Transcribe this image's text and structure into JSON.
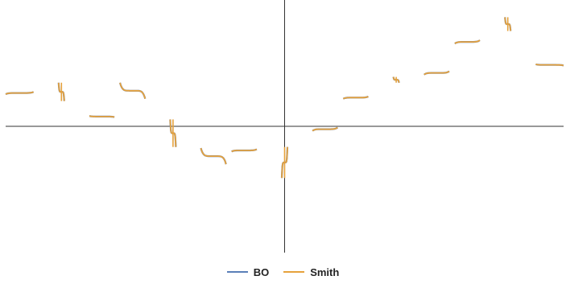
{
  "chart_data": {
    "type": "line",
    "title": "",
    "xlabel": "",
    "ylabel": "",
    "grid": false,
    "legend_position": "bottom-center",
    "xlim": [
      -1,
      1
    ],
    "ylim": [
      -1.1,
      1.1
    ],
    "axes": {
      "x_axis_at_y": 0,
      "y_axis_at_x": 0,
      "ticks_shown": false
    },
    "pole_markers_x": [
      -0.8,
      -0.4,
      0.0,
      0.4,
      0.8
    ],
    "series": [
      {
        "name": "BO",
        "color": "#5a7fb8",
        "x": [
          -1.0,
          -0.9,
          -0.81,
          -0.79,
          -0.7,
          -0.61,
          -0.59,
          -0.5,
          -0.41,
          -0.39,
          -0.3,
          -0.21,
          -0.19,
          -0.1,
          -0.01,
          0.01,
          0.1,
          0.19,
          0.21,
          0.3,
          0.39,
          0.41,
          0.5,
          0.59,
          0.61,
          0.7,
          0.79,
          0.81,
          0.9,
          1.0
        ],
        "y": [
          0.28,
          0.3,
          0.38,
          0.22,
          0.09,
          0.08,
          0.38,
          0.24,
          0.06,
          -0.18,
          -0.19,
          -0.33,
          -0.22,
          -0.2,
          -0.45,
          -0.18,
          -0.04,
          -0.01,
          0.24,
          0.26,
          0.43,
          0.38,
          0.45,
          0.48,
          0.72,
          0.75,
          0.95,
          0.83,
          0.54,
          0.53
        ]
      },
      {
        "name": "Smith",
        "color": "#e6a23c",
        "x": [
          -1.0,
          -0.9,
          -0.81,
          -0.79,
          -0.7,
          -0.61,
          -0.59,
          -0.5,
          -0.41,
          -0.39,
          -0.3,
          -0.21,
          -0.19,
          -0.1,
          -0.01,
          0.01,
          0.1,
          0.19,
          0.21,
          0.3,
          0.39,
          0.41,
          0.5,
          0.59,
          0.61,
          0.7,
          0.79,
          0.81,
          0.9,
          1.0
        ],
        "y": [
          0.28,
          0.3,
          0.38,
          0.22,
          0.09,
          0.08,
          0.38,
          0.24,
          0.06,
          -0.18,
          -0.19,
          -0.33,
          -0.22,
          -0.2,
          -0.45,
          -0.18,
          -0.04,
          -0.01,
          0.24,
          0.26,
          0.43,
          0.38,
          0.45,
          0.48,
          0.72,
          0.75,
          0.95,
          0.83,
          0.54,
          0.53
        ]
      }
    ]
  },
  "legend": {
    "items": [
      {
        "label": "BO",
        "color": "#5a7fb8"
      },
      {
        "label": "Smith",
        "color": "#e6a23c"
      }
    ]
  }
}
